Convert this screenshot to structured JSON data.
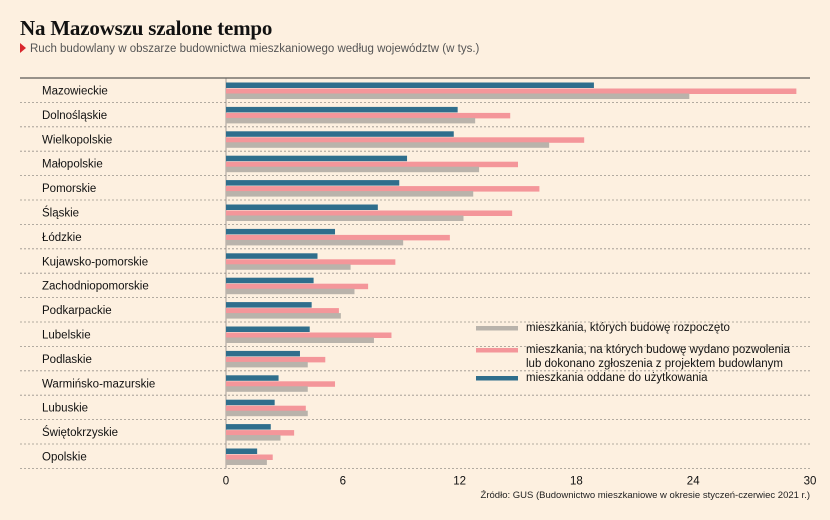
{
  "title": "Na Mazowszu szalone tempo",
  "subtitle": "Ruch budowlany w obszarze budownictwa mieszkaniowego według województw (w tys.)",
  "source": "Źródło: GUS (Budownictwo mieszkaniowe w okresie styczeń-czerwiec 2021 r.)",
  "colors": {
    "started": "#b9b3ab",
    "permits": "#f4969a",
    "completed": "#2f6e8c",
    "background": "#fdf0e0"
  },
  "chart_data": {
    "type": "bar",
    "orientation": "horizontal",
    "categories": [
      "Mazowieckie",
      "Dolnośląskie",
      "Wielkopolskie",
      "Małopolskie",
      "Pomorskie",
      "Śląskie",
      "Łódzkie",
      "Kujawsko-pomorskie",
      "Zachodniopomorskie",
      "Podkarpackie",
      "Lubelskie",
      "Podlaskie",
      "Warmińsko-mazurskie",
      "Lubuskie",
      "Świętokrzyskie",
      "Opolskie"
    ],
    "series": [
      {
        "name": "mieszkania oddane do użytkowania",
        "key": "completed",
        "values": [
          18.9,
          11.9,
          11.7,
          9.3,
          8.9,
          7.8,
          5.6,
          4.7,
          4.5,
          4.4,
          4.3,
          3.8,
          2.7,
          2.5,
          2.3,
          1.6
        ]
      },
      {
        "name": "mieszkania, na których budowę wydano pozwolenia lub dokonano zgłoszenia z projektem budowlanym",
        "key": "permits",
        "values": [
          29.3,
          14.6,
          18.4,
          15.0,
          16.1,
          14.7,
          11.5,
          8.7,
          7.3,
          5.8,
          8.5,
          5.1,
          5.6,
          4.1,
          3.5,
          2.4
        ]
      },
      {
        "name": "mieszkania, których budowę rozpoczęto",
        "key": "started",
        "values": [
          23.8,
          12.8,
          16.6,
          13.0,
          12.7,
          12.2,
          9.1,
          6.4,
          6.6,
          5.9,
          7.6,
          4.2,
          4.2,
          4.2,
          2.8,
          2.1
        ]
      }
    ],
    "legend": [
      {
        "key": "started",
        "label": "mieszkania, których budowę rozpoczęto"
      },
      {
        "key": "permits",
        "label": "mieszkania, na których budowę wydano pozwolenia lub dokonano zgłoszenia z projektem budowlanym"
      },
      {
        "key": "completed",
        "label": "mieszkania oddane do użytkowania"
      }
    ],
    "legend_position": "right-middle",
    "xlim": [
      0,
      30
    ],
    "xticks": [
      0,
      6,
      12,
      18,
      24,
      30
    ],
    "grid": false
  }
}
